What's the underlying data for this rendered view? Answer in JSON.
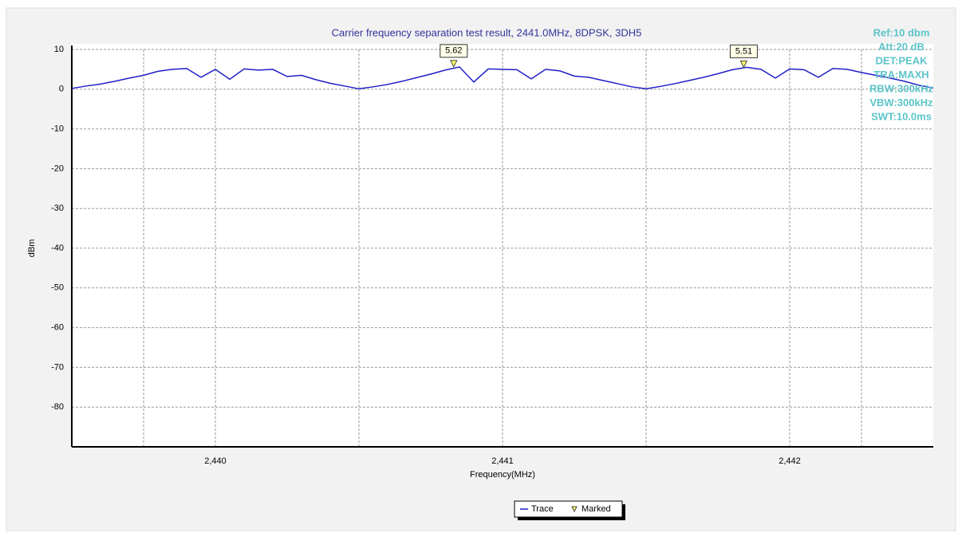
{
  "chart_data": {
    "type": "line",
    "title": "Carrier frequency separation test result, 2441.0MHz, 8DPSK, 3DH5",
    "x_label": "Frequency(MHz)",
    "y_label": "dBm",
    "xlim": [
      2439.5,
      2442.5
    ],
    "ylim": [
      -90,
      10
    ],
    "xticks": [
      {
        "value": 2440,
        "label": "2,440"
      },
      {
        "value": 2441,
        "label": "2,441"
      },
      {
        "value": 2442,
        "label": "2,442"
      }
    ],
    "x_minor_grid": [
      2439.75,
      2440.5,
      2441.5,
      2442.25
    ],
    "yticks": [
      10,
      0,
      -10,
      -20,
      -30,
      -40,
      -50,
      -60,
      -70,
      -80
    ],
    "grid": true,
    "x": [
      2439.5,
      2439.55,
      2439.6,
      2439.65,
      2439.7,
      2439.75,
      2439.8,
      2439.85,
      2439.9,
      2439.95,
      2440,
      2440.05,
      2440.1,
      2440.15,
      2440.2,
      2440.25,
      2440.3,
      2440.35,
      2440.4,
      2440.45,
      2440.5,
      2440.55,
      2440.6,
      2440.65,
      2440.7,
      2440.75,
      2440.8,
      2440.85,
      2440.9,
      2440.95,
      2441,
      2441.05,
      2441.1,
      2441.15,
      2441.2,
      2441.25,
      2441.3,
      2441.35,
      2441.4,
      2441.45,
      2441.5,
      2441.55,
      2441.6,
      2441.65,
      2441.7,
      2441.75,
      2441.8,
      2441.85,
      2441.9,
      2441.95,
      2442,
      2442.05,
      2442.1,
      2442.15,
      2442.2,
      2442.25,
      2442.3,
      2442.35,
      2442.4,
      2442.45,
      2442.5
    ],
    "series": [
      {
        "name": "Trace",
        "color": "#1f1fc8",
        "values": [
          0.2,
          0.8,
          1.3,
          2.0,
          2.8,
          3.5,
          4.5,
          5.0,
          5.2,
          3.0,
          5.0,
          2.5,
          5.1,
          4.8,
          5.0,
          3.2,
          3.5,
          2.4,
          1.5,
          0.8,
          0.1,
          0.6,
          1.2,
          2.0,
          2.9,
          3.8,
          4.8,
          5.6,
          1.8,
          5.1,
          5.0,
          4.9,
          2.6,
          5.0,
          4.6,
          3.3,
          3.0,
          2.2,
          1.4,
          0.6,
          0.1,
          0.7,
          1.4,
          2.2,
          3.0,
          3.9,
          4.9,
          5.5,
          5.0,
          2.8,
          5.1,
          4.9,
          3.0,
          5.2,
          5.0,
          4.2,
          3.5,
          2.8,
          2.0,
          1.0,
          0.3
        ]
      }
    ],
    "markers": {
      "name": "Marked",
      "color": "#ffff66",
      "x": [
        2440.83,
        2441.84
      ],
      "values": [
        5.62,
        5.51
      ]
    },
    "settings_text": [
      "Ref:10 dbm",
      "Att:20 dB",
      "DET:PEAK",
      "TRA:MAXH",
      "RBW:300kHz",
      "VBW:300kHz",
      "SWT:10.0ms"
    ]
  }
}
